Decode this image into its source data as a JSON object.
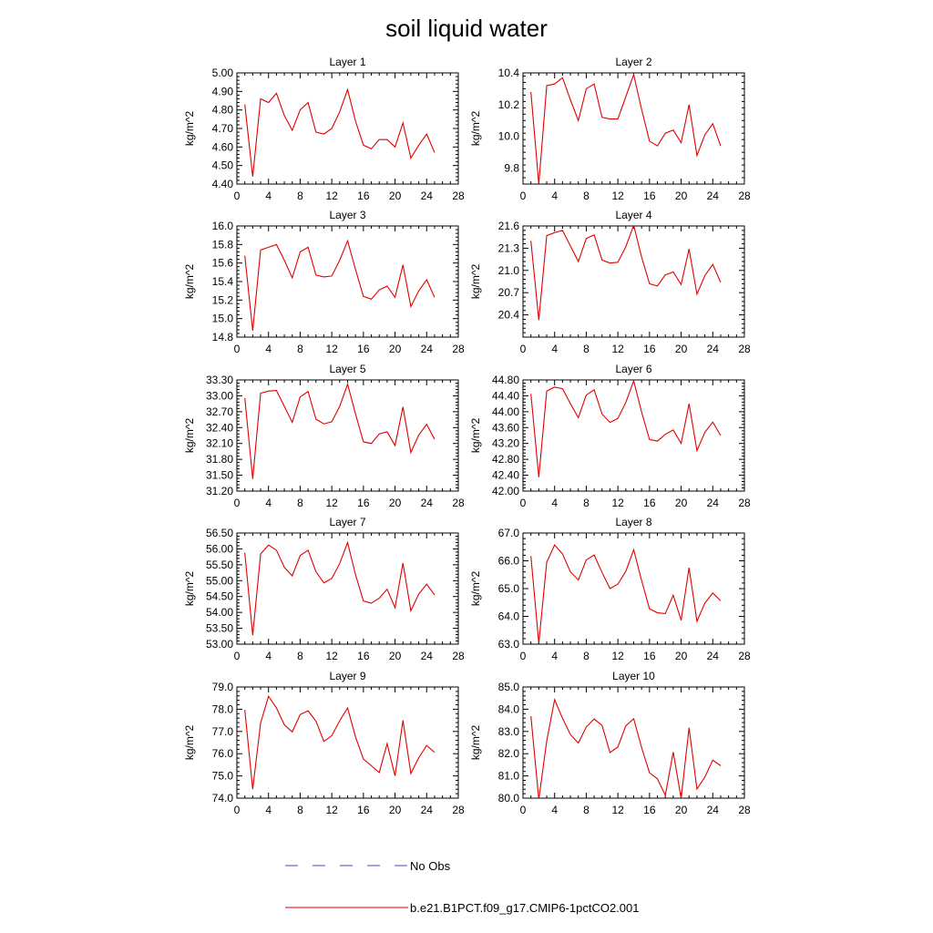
{
  "figure": {
    "title": "soil liquid water"
  },
  "legend": [
    {
      "label": "No Obs",
      "color": "#4444cc",
      "style": "dashed"
    },
    {
      "label": "b.e21.B1PCT.f09_g17.CMIP6-1pctCO2.001",
      "color": "#e00000",
      "style": "solid"
    }
  ],
  "colors": {
    "series": "#e00000",
    "axis": "#000000"
  },
  "chart_data": [
    {
      "type": "line",
      "title": "Layer 1",
      "ylabel": "kg/m^2",
      "xlim": [
        0,
        28
      ],
      "ylim": [
        4.4,
        5.0
      ],
      "yticks": [
        4.4,
        4.5,
        4.6,
        4.7,
        4.8,
        4.9,
        5.0
      ],
      "ydecimals": 2,
      "xticks": [
        0,
        4,
        8,
        12,
        16,
        20,
        24,
        28
      ],
      "x": [
        1,
        2,
        3,
        4,
        5,
        6,
        7,
        8,
        9,
        10,
        11,
        12,
        13,
        14,
        15,
        16,
        17,
        18,
        19,
        20,
        21,
        22,
        23,
        24,
        25
      ],
      "series": [
        {
          "values": [
            4.83,
            4.44,
            4.86,
            4.84,
            4.89,
            4.77,
            4.69,
            4.8,
            4.84,
            4.68,
            4.67,
            4.7,
            4.79,
            4.91,
            4.74,
            4.61,
            4.59,
            4.64,
            4.64,
            4.6,
            4.73,
            4.54,
            4.61,
            4.67,
            4.57
          ]
        }
      ]
    },
    {
      "type": "line",
      "title": "Layer 2",
      "ylabel": "kg/m^2",
      "xlim": [
        0,
        28
      ],
      "ylim": [
        9.7,
        10.4
      ],
      "yticks": [
        9.8,
        10.0,
        10.2,
        10.4
      ],
      "ydecimals": 1,
      "xticks": [
        0,
        4,
        8,
        12,
        16,
        20,
        24,
        28
      ],
      "x": [
        1,
        2,
        3,
        4,
        5,
        6,
        7,
        8,
        9,
        10,
        11,
        12,
        13,
        14,
        15,
        16,
        17,
        18,
        19,
        20,
        21,
        22,
        23,
        24,
        25
      ],
      "series": [
        {
          "values": [
            10.28,
            9.7,
            10.32,
            10.33,
            10.37,
            10.23,
            10.1,
            10.3,
            10.33,
            10.12,
            10.11,
            10.11,
            10.25,
            10.39,
            10.17,
            9.97,
            9.94,
            10.02,
            10.04,
            9.96,
            10.2,
            9.88,
            10.01,
            10.08,
            9.94
          ]
        }
      ]
    },
    {
      "type": "line",
      "title": "Layer 3",
      "ylabel": "kg/m^2",
      "xlim": [
        0,
        28
      ],
      "ylim": [
        14.8,
        16.0
      ],
      "yticks": [
        14.8,
        15.0,
        15.2,
        15.4,
        15.6,
        15.8,
        16.0
      ],
      "ydecimals": 1,
      "xticks": [
        0,
        4,
        8,
        12,
        16,
        20,
        24,
        28
      ],
      "x": [
        1,
        2,
        3,
        4,
        5,
        6,
        7,
        8,
        9,
        10,
        11,
        12,
        13,
        14,
        15,
        16,
        17,
        18,
        19,
        20,
        21,
        22,
        23,
        24,
        25
      ],
      "series": [
        {
          "values": [
            15.68,
            14.87,
            15.74,
            15.77,
            15.8,
            15.63,
            15.44,
            15.72,
            15.77,
            15.47,
            15.45,
            15.46,
            15.63,
            15.84,
            15.53,
            15.24,
            15.21,
            15.31,
            15.35,
            15.23,
            15.58,
            15.13,
            15.3,
            15.42,
            15.23
          ]
        }
      ]
    },
    {
      "type": "line",
      "title": "Layer 4",
      "ylabel": "kg/m^2",
      "xlim": [
        0,
        28
      ],
      "ylim": [
        20.1,
        21.6
      ],
      "yticks": [
        20.4,
        20.7,
        21.0,
        21.3,
        21.6
      ],
      "ydecimals": 1,
      "xticks": [
        0,
        4,
        8,
        12,
        16,
        20,
        24,
        28
      ],
      "x": [
        1,
        2,
        3,
        4,
        5,
        6,
        7,
        8,
        9,
        10,
        11,
        12,
        13,
        14,
        15,
        16,
        17,
        18,
        19,
        20,
        21,
        22,
        23,
        24,
        25
      ],
      "series": [
        {
          "values": [
            21.4,
            20.33,
            21.47,
            21.51,
            21.54,
            21.33,
            21.12,
            21.43,
            21.48,
            21.14,
            21.1,
            21.11,
            21.32,
            21.61,
            21.18,
            20.82,
            20.79,
            20.94,
            20.98,
            20.81,
            21.29,
            20.68,
            20.93,
            21.08,
            20.84
          ]
        }
      ]
    },
    {
      "type": "line",
      "title": "Layer 5",
      "ylabel": "kg/m^2",
      "xlim": [
        0,
        28
      ],
      "ylim": [
        31.2,
        33.3
      ],
      "yticks": [
        31.2,
        31.5,
        31.8,
        32.1,
        32.4,
        32.7,
        33.0,
        33.3
      ],
      "ydecimals": 2,
      "xticks": [
        0,
        4,
        8,
        12,
        16,
        20,
        24,
        28
      ],
      "x": [
        1,
        2,
        3,
        4,
        5,
        6,
        7,
        8,
        9,
        10,
        11,
        12,
        13,
        14,
        15,
        16,
        17,
        18,
        19,
        20,
        21,
        22,
        23,
        24,
        25
      ],
      "series": [
        {
          "values": [
            32.96,
            31.43,
            33.05,
            33.09,
            33.1,
            32.8,
            32.5,
            32.98,
            33.08,
            32.56,
            32.47,
            32.51,
            32.8,
            33.22,
            32.66,
            32.13,
            32.1,
            32.28,
            32.32,
            32.06,
            32.79,
            31.93,
            32.26,
            32.46,
            32.18
          ]
        }
      ]
    },
    {
      "type": "line",
      "title": "Layer 6",
      "ylabel": "kg/m^2",
      "xlim": [
        0,
        28
      ],
      "ylim": [
        42.0,
        44.8
      ],
      "yticks": [
        42.0,
        42.4,
        42.8,
        43.2,
        43.6,
        44.0,
        44.4,
        44.8
      ],
      "ydecimals": 2,
      "xticks": [
        0,
        4,
        8,
        12,
        16,
        20,
        24,
        28
      ],
      "x": [
        1,
        2,
        3,
        4,
        5,
        6,
        7,
        8,
        9,
        10,
        11,
        12,
        13,
        14,
        15,
        16,
        17,
        18,
        19,
        20,
        21,
        22,
        23,
        24,
        25
      ],
      "series": [
        {
          "values": [
            44.45,
            42.35,
            44.52,
            44.62,
            44.58,
            44.2,
            43.85,
            44.42,
            44.55,
            43.94,
            43.73,
            43.83,
            44.23,
            44.78,
            43.99,
            43.3,
            43.26,
            43.43,
            43.54,
            43.2,
            44.2,
            43.02,
            43.48,
            43.74,
            43.4
          ]
        }
      ]
    },
    {
      "type": "line",
      "title": "Layer 7",
      "ylabel": "kg/m^2",
      "xlim": [
        0,
        28
      ],
      "ylim": [
        53.0,
        56.5
      ],
      "yticks": [
        53.0,
        53.5,
        54.0,
        54.5,
        55.0,
        55.5,
        56.0,
        56.5
      ],
      "ydecimals": 2,
      "xticks": [
        0,
        4,
        8,
        12,
        16,
        20,
        24,
        28
      ],
      "x": [
        1,
        2,
        3,
        4,
        5,
        6,
        7,
        8,
        9,
        10,
        11,
        12,
        13,
        14,
        15,
        16,
        17,
        18,
        19,
        20,
        21,
        22,
        23,
        24,
        25
      ],
      "series": [
        {
          "values": [
            55.88,
            53.28,
            55.84,
            56.12,
            55.96,
            55.42,
            55.15,
            55.79,
            55.96,
            55.28,
            54.93,
            55.07,
            55.54,
            56.2,
            55.19,
            54.36,
            54.29,
            54.45,
            54.73,
            54.15,
            55.55,
            54.05,
            54.58,
            54.89,
            54.55
          ]
        }
      ]
    },
    {
      "type": "line",
      "title": "Layer 8",
      "ylabel": "kg/m^2",
      "xlim": [
        0,
        28
      ],
      "ylim": [
        63.0,
        67.0
      ],
      "yticks": [
        63.0,
        64.0,
        65.0,
        66.0,
        67.0
      ],
      "ydecimals": 1,
      "xticks": [
        0,
        4,
        8,
        12,
        16,
        20,
        24,
        28
      ],
      "x": [
        1,
        2,
        3,
        4,
        5,
        6,
        7,
        8,
        9,
        10,
        11,
        12,
        13,
        14,
        15,
        16,
        17,
        18,
        19,
        20,
        21,
        22,
        23,
        24,
        25
      ],
      "series": [
        {
          "values": [
            66.17,
            63.03,
            65.95,
            66.57,
            66.25,
            65.6,
            65.31,
            66.03,
            66.21,
            65.58,
            65.0,
            65.16,
            65.62,
            66.4,
            65.29,
            64.27,
            64.13,
            64.1,
            64.76,
            63.86,
            65.75,
            63.82,
            64.48,
            64.84,
            64.56
          ]
        }
      ]
    },
    {
      "type": "line",
      "title": "Layer 9",
      "ylabel": "kg/m^2",
      "xlim": [
        0,
        28
      ],
      "ylim": [
        74.0,
        79.0
      ],
      "yticks": [
        74.0,
        75.0,
        76.0,
        77.0,
        78.0,
        79.0
      ],
      "ydecimals": 1,
      "xticks": [
        0,
        4,
        8,
        12,
        16,
        20,
        24,
        28
      ],
      "x": [
        1,
        2,
        3,
        4,
        5,
        6,
        7,
        8,
        9,
        10,
        11,
        12,
        13,
        14,
        15,
        16,
        17,
        18,
        19,
        20,
        21,
        22,
        23,
        24,
        25
      ],
      "series": [
        {
          "values": [
            77.97,
            74.4,
            77.38,
            78.58,
            78.06,
            77.3,
            76.98,
            77.76,
            77.93,
            77.46,
            76.55,
            76.81,
            77.48,
            78.06,
            76.76,
            75.76,
            75.46,
            75.15,
            76.45,
            75.0,
            77.5,
            75.11,
            75.82,
            76.37,
            76.06
          ]
        }
      ]
    },
    {
      "type": "line",
      "title": "Layer 10",
      "ylabel": "kg/m^2",
      "xlim": [
        0,
        28
      ],
      "ylim": [
        80.0,
        85.0
      ],
      "yticks": [
        80.0,
        81.0,
        82.0,
        83.0,
        84.0,
        85.0
      ],
      "ydecimals": 1,
      "xticks": [
        0,
        4,
        8,
        12,
        16,
        20,
        24,
        28
      ],
      "x": [
        1,
        2,
        3,
        4,
        5,
        6,
        7,
        8,
        9,
        10,
        11,
        12,
        13,
        14,
        15,
        16,
        17,
        18,
        19,
        20,
        21,
        22,
        23,
        24,
        25
      ],
      "series": [
        {
          "values": [
            83.69,
            79.94,
            82.57,
            84.43,
            83.59,
            82.86,
            82.48,
            83.2,
            83.56,
            83.27,
            82.05,
            82.3,
            83.25,
            83.57,
            82.28,
            81.14,
            80.87,
            80.13,
            82.07,
            79.99,
            83.17,
            80.41,
            80.95,
            81.71,
            81.46
          ]
        }
      ]
    }
  ]
}
